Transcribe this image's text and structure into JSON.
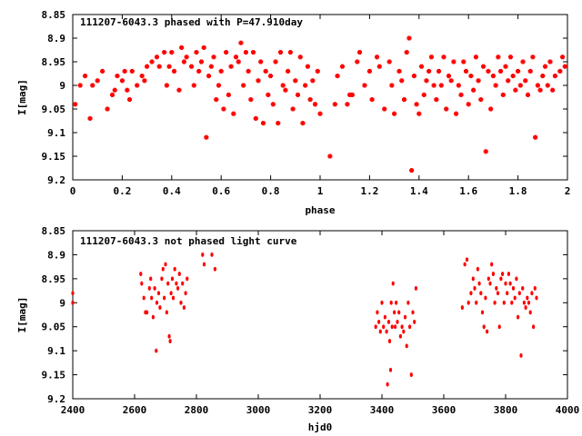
{
  "chart_data": [
    {
      "type": "scatter",
      "title": "111207-6043.3 phased with P=47.910day",
      "xlabel": "phase",
      "ylabel": "I[mag]",
      "xlim": [
        0,
        2
      ],
      "ylim": [
        8.85,
        9.2
      ],
      "y_inverted": true,
      "xticks": [
        0,
        0.2,
        0.4,
        0.6,
        0.8,
        1,
        1.2,
        1.4,
        1.6,
        1.8,
        2
      ],
      "xtick_labels": [
        "0",
        "0.2",
        "0.4",
        "0.6",
        "0.8",
        "1",
        "1.2",
        "1.4",
        "1.6",
        "1.8",
        "2"
      ],
      "yticks": [
        8.85,
        8.9,
        8.95,
        9,
        9.05,
        9.1,
        9.15,
        9.2
      ],
      "ytick_labels": [
        "8.85",
        "8.9",
        "8.95",
        "9",
        "9.05",
        "9.1",
        "9.15",
        "9.2"
      ],
      "marker_color": "#ff0000",
      "grid": false,
      "points": [
        [
          0.01,
          9.04
        ],
        [
          0.03,
          9.0
        ],
        [
          0.05,
          8.98
        ],
        [
          0.07,
          9.07
        ],
        [
          0.08,
          9.0
        ],
        [
          0.1,
          8.99
        ],
        [
          0.12,
          8.97
        ],
        [
          0.14,
          9.05
        ],
        [
          0.16,
          9.02
        ],
        [
          0.17,
          9.01
        ],
        [
          0.18,
          8.98
        ],
        [
          0.2,
          8.99
        ],
        [
          0.21,
          8.97
        ],
        [
          0.22,
          9.01
        ],
        [
          0.23,
          9.03
        ],
        [
          0.24,
          8.97
        ],
        [
          0.26,
          9.0
        ],
        [
          0.28,
          8.98
        ],
        [
          0.29,
          8.99
        ],
        [
          0.3,
          8.96
        ],
        [
          0.32,
          8.95
        ],
        [
          0.34,
          8.94
        ],
        [
          0.35,
          8.96
        ],
        [
          0.37,
          8.93
        ],
        [
          0.38,
          9.0
        ],
        [
          0.39,
          8.96
        ],
        [
          0.4,
          8.93
        ],
        [
          0.41,
          8.97
        ],
        [
          0.43,
          9.01
        ],
        [
          0.44,
          8.92
        ],
        [
          0.45,
          8.95
        ],
        [
          0.46,
          8.94
        ],
        [
          0.48,
          8.96
        ],
        [
          0.49,
          9.0
        ],
        [
          0.5,
          8.93
        ],
        [
          0.51,
          8.97
        ],
        [
          0.52,
          8.95
        ],
        [
          0.53,
          8.92
        ],
        [
          0.54,
          9.11
        ],
        [
          0.55,
          8.98
        ],
        [
          0.56,
          8.96
        ],
        [
          0.57,
          8.94
        ],
        [
          0.58,
          9.03
        ],
        [
          0.59,
          9.0
        ],
        [
          0.6,
          8.97
        ],
        [
          0.61,
          9.05
        ],
        [
          0.62,
          8.93
        ],
        [
          0.63,
          9.02
        ],
        [
          0.64,
          8.96
        ],
        [
          0.65,
          9.06
        ],
        [
          0.66,
          8.94
        ],
        [
          0.67,
          8.95
        ],
        [
          0.68,
          8.91
        ],
        [
          0.69,
          9.0
        ],
        [
          0.7,
          8.93
        ],
        [
          0.71,
          8.97
        ],
        [
          0.72,
          9.03
        ],
        [
          0.73,
          8.93
        ],
        [
          0.74,
          9.07
        ],
        [
          0.75,
          8.99
        ],
        [
          0.76,
          8.95
        ],
        [
          0.77,
          9.08
        ],
        [
          0.78,
          8.97
        ],
        [
          0.79,
          9.02
        ],
        [
          0.8,
          8.98
        ],
        [
          0.81,
          9.04
        ],
        [
          0.82,
          8.95
        ],
        [
          0.83,
          9.08
        ],
        [
          0.84,
          8.93
        ],
        [
          0.85,
          9.0
        ],
        [
          0.86,
          9.01
        ],
        [
          0.87,
          8.97
        ],
        [
          0.88,
          8.93
        ],
        [
          0.89,
          9.05
        ],
        [
          0.9,
          8.99
        ],
        [
          0.91,
          9.02
        ],
        [
          0.92,
          8.94
        ],
        [
          0.93,
          9.08
        ],
        [
          0.94,
          9.0
        ],
        [
          0.95,
          8.96
        ],
        [
          0.96,
          9.03
        ],
        [
          0.97,
          8.99
        ],
        [
          0.98,
          9.04
        ],
        [
          0.99,
          8.97
        ],
        [
          1.0,
          9.06
        ],
        [
          1.04,
          9.15
        ],
        [
          1.06,
          9.04
        ],
        [
          1.07,
          8.98
        ],
        [
          1.09,
          8.96
        ],
        [
          1.11,
          9.04
        ],
        [
          1.12,
          9.02
        ],
        [
          1.13,
          9.02
        ],
        [
          1.15,
          8.95
        ],
        [
          1.16,
          8.93
        ],
        [
          1.18,
          9.0
        ],
        [
          1.2,
          8.97
        ],
        [
          1.21,
          9.03
        ],
        [
          1.23,
          8.94
        ],
        [
          1.24,
          8.96
        ],
        [
          1.26,
          9.05
        ],
        [
          1.28,
          8.95
        ],
        [
          1.29,
          9.0
        ],
        [
          1.3,
          9.06
        ],
        [
          1.32,
          8.97
        ],
        [
          1.33,
          8.99
        ],
        [
          1.34,
          9.03
        ],
        [
          1.35,
          8.93
        ],
        [
          1.36,
          8.9
        ],
        [
          1.37,
          9.18
        ],
        [
          1.38,
          8.98
        ],
        [
          1.39,
          9.04
        ],
        [
          1.4,
          9.06
        ],
        [
          1.41,
          8.96
        ],
        [
          1.42,
          9.02
        ],
        [
          1.43,
          8.99
        ],
        [
          1.44,
          8.97
        ],
        [
          1.45,
          8.94
        ],
        [
          1.46,
          9.0
        ],
        [
          1.47,
          9.03
        ],
        [
          1.48,
          8.97
        ],
        [
          1.49,
          9.0
        ],
        [
          1.5,
          8.94
        ],
        [
          1.51,
          9.05
        ],
        [
          1.52,
          8.98
        ],
        [
          1.53,
          8.99
        ],
        [
          1.54,
          8.95
        ],
        [
          1.55,
          9.06
        ],
        [
          1.56,
          9.0
        ],
        [
          1.57,
          9.02
        ],
        [
          1.58,
          8.95
        ],
        [
          1.59,
          8.97
        ],
        [
          1.6,
          9.04
        ],
        [
          1.61,
          8.98
        ],
        [
          1.62,
          9.01
        ],
        [
          1.63,
          8.94
        ],
        [
          1.64,
          8.99
        ],
        [
          1.65,
          9.03
        ],
        [
          1.66,
          8.96
        ],
        [
          1.67,
          9.14
        ],
        [
          1.68,
          8.97
        ],
        [
          1.69,
          9.05
        ],
        [
          1.7,
          8.98
        ],
        [
          1.71,
          9.0
        ],
        [
          1.72,
          8.94
        ],
        [
          1.73,
          8.97
        ],
        [
          1.74,
          9.02
        ],
        [
          1.75,
          8.96
        ],
        [
          1.76,
          8.99
        ],
        [
          1.77,
          8.94
        ],
        [
          1.78,
          8.98
        ],
        [
          1.79,
          9.01
        ],
        [
          1.8,
          8.97
        ],
        [
          1.81,
          9.0
        ],
        [
          1.82,
          8.95
        ],
        [
          1.83,
          8.99
        ],
        [
          1.84,
          9.02
        ],
        [
          1.85,
          8.97
        ],
        [
          1.86,
          8.94
        ],
        [
          1.87,
          9.11
        ],
        [
          1.88,
          9.0
        ],
        [
          1.89,
          9.01
        ],
        [
          1.9,
          8.98
        ],
        [
          1.91,
          8.96
        ],
        [
          1.92,
          9.0
        ],
        [
          1.93,
          8.95
        ],
        [
          1.94,
          9.01
        ],
        [
          1.95,
          8.98
        ],
        [
          1.97,
          8.97
        ],
        [
          1.98,
          8.94
        ],
        [
          1.99,
          8.96
        ]
      ]
    },
    {
      "type": "scatter",
      "title": "111207-6043.3 not phased light curve",
      "xlabel": "hjd0",
      "ylabel": "I[mag]",
      "xlim": [
        2400,
        4000
      ],
      "ylim": [
        8.85,
        9.2
      ],
      "y_inverted": true,
      "xticks": [
        2400,
        2600,
        2800,
        3000,
        3200,
        3400,
        3600,
        3800,
        4000
      ],
      "xtick_labels": [
        "2400",
        "2600",
        "2800",
        "3000",
        "3200",
        "3400",
        "3600",
        "3800",
        "4000"
      ],
      "yticks": [
        8.85,
        8.9,
        8.95,
        9,
        9.05,
        9.1,
        9.15,
        9.2
      ],
      "ytick_labels": [
        "8.85",
        "8.9",
        "8.95",
        "9",
        "9.05",
        "9.1",
        "9.15",
        "9.2"
      ],
      "marker_color": "#ff0000",
      "grid": false,
      "points": [
        [
          2400,
          8.98
        ],
        [
          2400,
          9.0
        ],
        [
          2620,
          8.94
        ],
        [
          2623,
          8.96
        ],
        [
          2630,
          8.99
        ],
        [
          2635,
          9.02
        ],
        [
          2640,
          9.02
        ],
        [
          2648,
          8.97
        ],
        [
          2652,
          8.95
        ],
        [
          2655,
          8.99
        ],
        [
          2660,
          9.03
        ],
        [
          2665,
          8.97
        ],
        [
          2670,
          9.1
        ],
        [
          2672,
          9.0
        ],
        [
          2678,
          8.98
        ],
        [
          2682,
          9.01
        ],
        [
          2688,
          8.95
        ],
        [
          2692,
          8.93
        ],
        [
          2696,
          8.99
        ],
        [
          2700,
          8.92
        ],
        [
          2704,
          9.02
        ],
        [
          2708,
          8.96
        ],
        [
          2712,
          9.07
        ],
        [
          2715,
          9.08
        ],
        [
          2718,
          8.98
        ],
        [
          2722,
          8.95
        ],
        [
          2725,
          8.99
        ],
        [
          2730,
          8.93
        ],
        [
          2735,
          8.96
        ],
        [
          2740,
          8.97
        ],
        [
          2745,
          8.94
        ],
        [
          2750,
          9.0
        ],
        [
          2755,
          8.96
        ],
        [
          2760,
          9.01
        ],
        [
          2765,
          8.98
        ],
        [
          2770,
          8.95
        ],
        [
          2820,
          8.9
        ],
        [
          2825,
          8.92
        ],
        [
          2850,
          8.9
        ],
        [
          2860,
          8.93
        ],
        [
          3380,
          9.05
        ],
        [
          3385,
          9.02
        ],
        [
          3390,
          9.04
        ],
        [
          3395,
          9.06
        ],
        [
          3400,
          9.0
        ],
        [
          3405,
          9.05
        ],
        [
          3410,
          9.03
        ],
        [
          3415,
          9.06
        ],
        [
          3418,
          9.17
        ],
        [
          3422,
          9.04
        ],
        [
          3425,
          9.08
        ],
        [
          3428,
          9.14
        ],
        [
          3430,
          9.0
        ],
        [
          3433,
          9.05
        ],
        [
          3436,
          8.96
        ],
        [
          3440,
          9.02
        ],
        [
          3443,
          9.05
        ],
        [
          3446,
          9.0
        ],
        [
          3450,
          9.04
        ],
        [
          3455,
          9.02
        ],
        [
          3460,
          9.07
        ],
        [
          3465,
          9.05
        ],
        [
          3470,
          9.06
        ],
        [
          3475,
          9.03
        ],
        [
          3480,
          9.09
        ],
        [
          3485,
          9.0
        ],
        [
          3490,
          9.05
        ],
        [
          3495,
          9.15
        ],
        [
          3500,
          9.02
        ],
        [
          3505,
          9.04
        ],
        [
          3510,
          8.97
        ],
        [
          3660,
          9.01
        ],
        [
          3668,
          8.92
        ],
        [
          3675,
          8.91
        ],
        [
          3680,
          9.0
        ],
        [
          3688,
          8.98
        ],
        [
          3695,
          8.95
        ],
        [
          3700,
          8.97
        ],
        [
          3705,
          9.0
        ],
        [
          3710,
          8.93
        ],
        [
          3715,
          8.96
        ],
        [
          3720,
          8.98
        ],
        [
          3725,
          9.02
        ],
        [
          3730,
          9.05
        ],
        [
          3735,
          8.99
        ],
        [
          3740,
          9.06
        ],
        [
          3745,
          8.95
        ],
        [
          3750,
          8.96
        ],
        [
          3755,
          8.92
        ],
        [
          3760,
          8.94
        ],
        [
          3765,
          9.0
        ],
        [
          3770,
          8.97
        ],
        [
          3775,
          8.98
        ],
        [
          3780,
          9.05
        ],
        [
          3785,
          8.95
        ],
        [
          3790,
          8.94
        ],
        [
          3795,
          9.0
        ],
        [
          3800,
          8.96
        ],
        [
          3805,
          8.98
        ],
        [
          3810,
          8.94
        ],
        [
          3815,
          8.96
        ],
        [
          3820,
          9.0
        ],
        [
          3825,
          8.97
        ],
        [
          3830,
          8.99
        ],
        [
          3835,
          8.95
        ],
        [
          3840,
          9.03
        ],
        [
          3845,
          8.98
        ],
        [
          3850,
          9.11
        ],
        [
          3855,
          8.97
        ],
        [
          3860,
          9.0
        ],
        [
          3865,
          9.01
        ],
        [
          3870,
          8.99
        ],
        [
          3875,
          9.0
        ],
        [
          3880,
          9.02
        ],
        [
          3885,
          8.98
        ],
        [
          3890,
          9.05
        ],
        [
          3895,
          8.97
        ],
        [
          3900,
          8.99
        ]
      ]
    }
  ]
}
